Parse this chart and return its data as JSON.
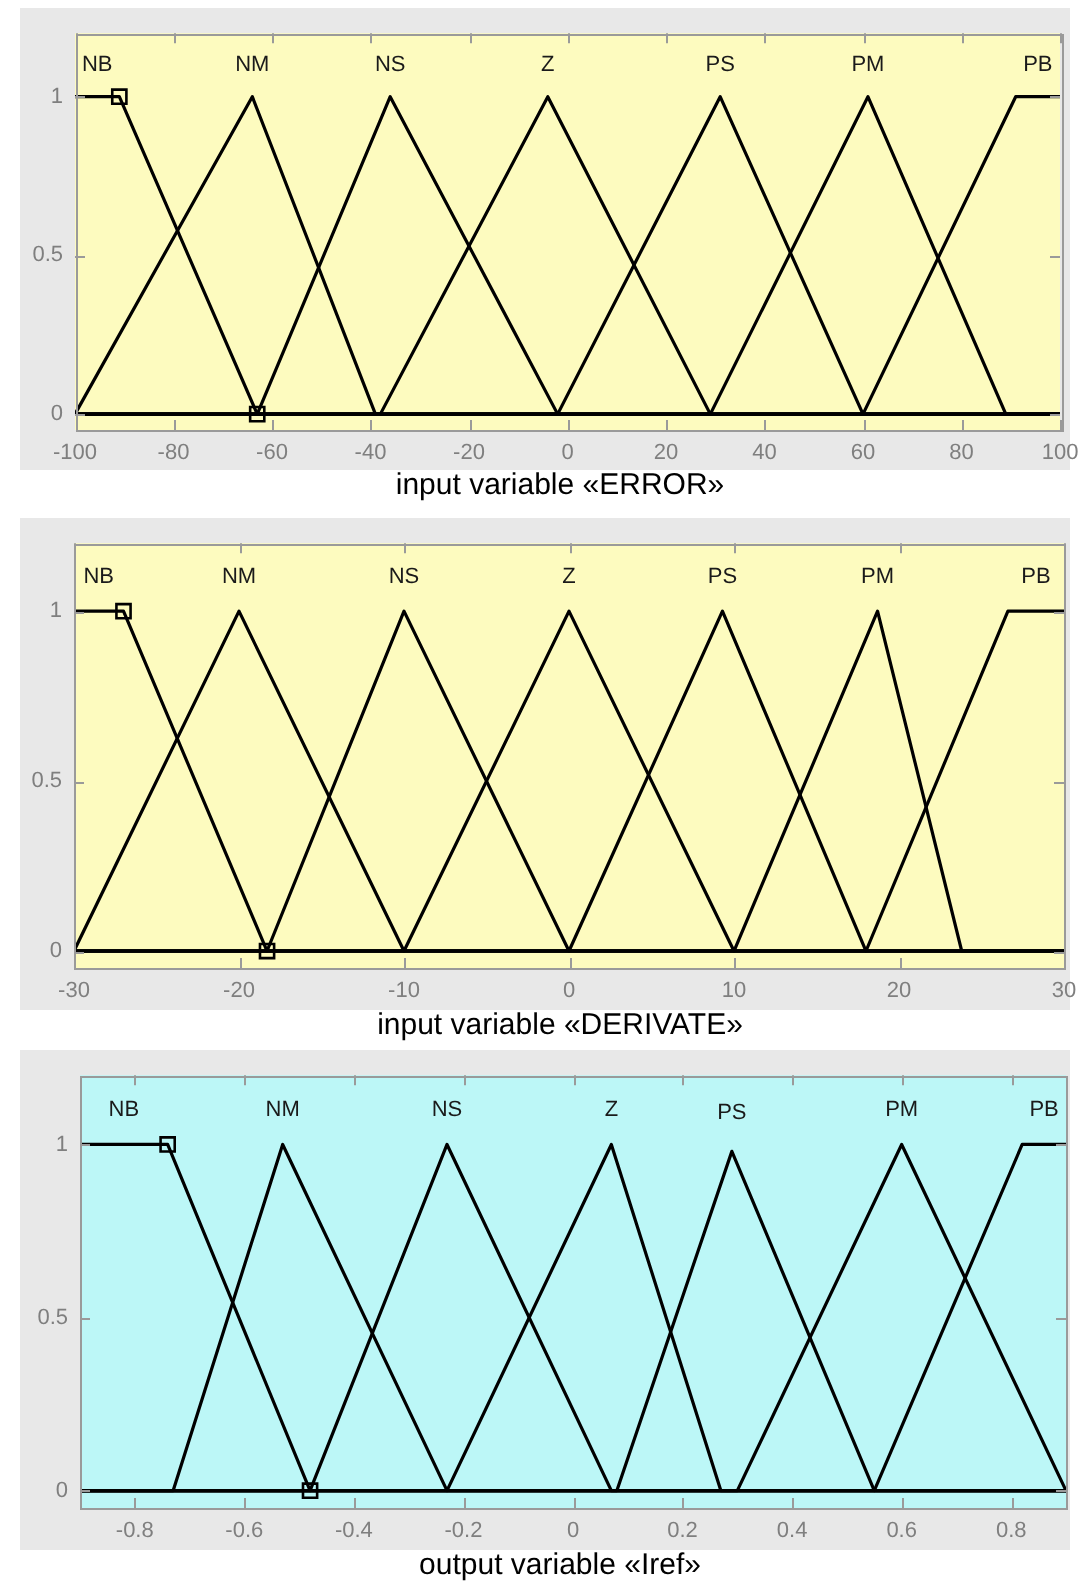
{
  "chart_data": [
    {
      "type": "line",
      "xlabel": "input variable «ERROR»",
      "xlim": [
        -100,
        100
      ],
      "xticks": [
        -100,
        -80,
        -60,
        -40,
        -20,
        0,
        20,
        40,
        60,
        80,
        100
      ],
      "ylim": [
        -0.05,
        1.2
      ],
      "yticks": [
        0,
        0.5,
        1
      ],
      "marker": "none",
      "series": [
        {
          "name": "NB",
          "color": "#000000",
          "x": [
            -100,
            -91,
            -63,
            100
          ],
          "values": [
            1,
            1,
            0,
            0
          ]
        },
        {
          "name": "NM",
          "color": "#000000",
          "x": [
            -100,
            -64,
            -39,
            100
          ],
          "values": [
            0,
            1,
            0,
            0
          ]
        },
        {
          "name": "NS",
          "color": "#000000",
          "x": [
            -100,
            -63,
            -36,
            -2,
            100
          ],
          "values": [
            0,
            0,
            1,
            0,
            0
          ]
        },
        {
          "name": "Z",
          "color": "#000000",
          "x": [
            -100,
            -38,
            -4,
            29,
            100
          ],
          "values": [
            0,
            0,
            1,
            0,
            0
          ]
        },
        {
          "name": "PS",
          "color": "#000000",
          "x": [
            -100,
            -2,
            31,
            60,
            100
          ],
          "values": [
            0,
            0,
            1,
            0,
            0
          ]
        },
        {
          "name": "PM",
          "color": "#000000",
          "x": [
            -100,
            29,
            61,
            89,
            100
          ],
          "values": [
            0,
            0,
            1,
            0,
            0
          ]
        },
        {
          "name": "PB",
          "color": "#000000",
          "x": [
            -100,
            60,
            91,
            100
          ],
          "values": [
            0,
            0,
            1,
            1
          ]
        },
        {
          "type": "scatter",
          "marker": "square",
          "color": "#000000",
          "x": [
            -91,
            -63
          ],
          "values": [
            1,
            0
          ]
        }
      ]
    },
    {
      "type": "line",
      "xlabel": "input variable «DERIVATE»",
      "xlim": [
        -30,
        30
      ],
      "xticks": [
        -30,
        -20,
        -10,
        0,
        10,
        20,
        30
      ],
      "ylim": [
        -0.05,
        1.2
      ],
      "yticks": [
        0,
        0.5,
        1
      ],
      "marker": "none",
      "series": [
        {
          "name": "NB",
          "color": "#000000",
          "x": [
            -30,
            -27,
            -18.3,
            30
          ],
          "values": [
            1,
            1,
            0,
            0
          ]
        },
        {
          "name": "NM",
          "color": "#000000",
          "x": [
            -30,
            -20,
            -10,
            30
          ],
          "values": [
            0,
            1,
            0,
            0
          ]
        },
        {
          "name": "NS",
          "color": "#000000",
          "x": [
            -30,
            -18.3,
            -10,
            0,
            30
          ],
          "values": [
            0,
            0,
            1,
            0,
            0
          ]
        },
        {
          "name": "Z",
          "color": "#000000",
          "x": [
            -30,
            -10,
            0,
            10,
            30
          ],
          "values": [
            0,
            0,
            1,
            0,
            0
          ]
        },
        {
          "name": "PS",
          "color": "#000000",
          "x": [
            -30,
            0,
            9.3,
            18,
            30
          ],
          "values": [
            0,
            0,
            1,
            0,
            0
          ]
        },
        {
          "name": "PM",
          "color": "#000000",
          "x": [
            -30,
            10,
            18.7,
            23.8,
            30
          ],
          "values": [
            0,
            0,
            1,
            0,
            0
          ]
        },
        {
          "name": "PB",
          "color": "#000000",
          "x": [
            -30,
            18,
            26.6,
            30
          ],
          "values": [
            0,
            0,
            1,
            1
          ]
        },
        {
          "type": "scatter",
          "marker": "square",
          "color": "#000000",
          "x": [
            -27,
            -18.3
          ],
          "values": [
            1,
            0
          ]
        }
      ]
    },
    {
      "type": "line",
      "xlabel": "output variable «Iref»",
      "xlim": [
        -0.9,
        0.9
      ],
      "xticks": [
        -0.8,
        -0.6,
        -0.4,
        -0.2,
        0,
        0.2,
        0.4,
        0.6,
        0.8
      ],
      "ylim": [
        -0.05,
        1.2
      ],
      "yticks": [
        0,
        0.5,
        1
      ],
      "marker": "none",
      "series": [
        {
          "name": "NB",
          "color": "#000000",
          "x": [
            -0.9,
            -0.74,
            -0.48,
            0.9
          ],
          "values": [
            1,
            1,
            0,
            0
          ]
        },
        {
          "name": "NM",
          "color": "#000000",
          "x": [
            -0.9,
            -0.73,
            -0.53,
            -0.23,
            0.9
          ],
          "values": [
            0,
            0,
            1,
            0,
            0
          ]
        },
        {
          "name": "NS",
          "color": "#000000",
          "x": [
            -0.9,
            -0.48,
            -0.23,
            0.07,
            0.9
          ],
          "values": [
            0,
            0,
            1,
            0,
            0
          ]
        },
        {
          "name": "Z",
          "color": "#000000",
          "x": [
            -0.9,
            -0.23,
            0.07,
            0.27,
            0.9
          ],
          "values": [
            0,
            0,
            1,
            0,
            0
          ]
        },
        {
          "name": "PS",
          "color": "#000000",
          "x": [
            -0.9,
            0.08,
            0.29,
            0.55,
            0.9
          ],
          "values": [
            0,
            0,
            0.98,
            0,
            0
          ]
        },
        {
          "name": "PM",
          "color": "#000000",
          "x": [
            -0.9,
            0.3,
            0.6,
            0.9
          ],
          "values": [
            0,
            0,
            1,
            0
          ]
        },
        {
          "name": "PB",
          "color": "#000000",
          "x": [
            -0.9,
            0.55,
            0.82,
            0.9
          ],
          "values": [
            0,
            0,
            1,
            1
          ]
        },
        {
          "type": "scatter",
          "marker": "square",
          "color": "#000000",
          "x": [
            -0.74,
            -0.48
          ],
          "values": [
            1,
            0
          ]
        }
      ]
    }
  ]
}
